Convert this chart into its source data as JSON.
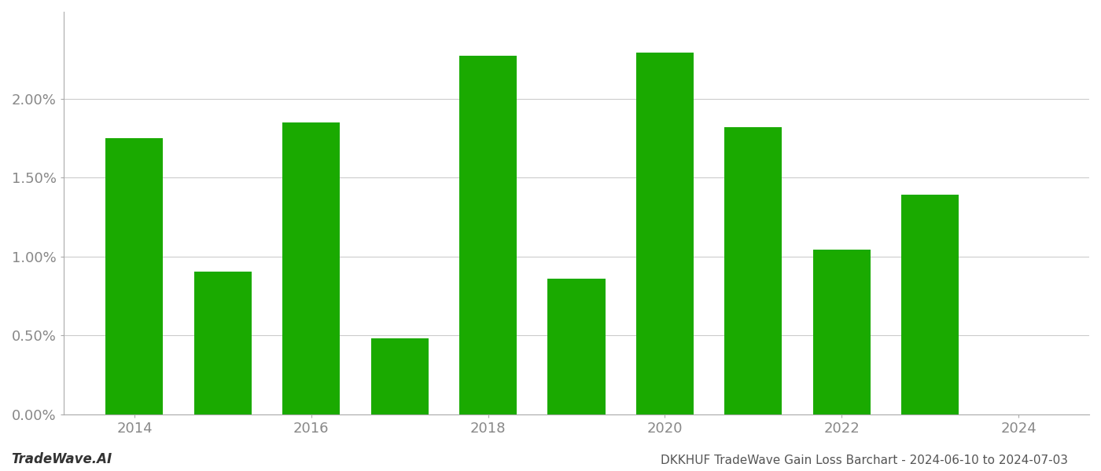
{
  "years": [
    2014,
    2015,
    2016,
    2017,
    2018,
    2019,
    2020,
    2021,
    2022,
    2023
  ],
  "values": [
    0.01748,
    0.00905,
    0.0185,
    0.0048,
    0.0227,
    0.0086,
    0.0229,
    0.0182,
    0.01045,
    0.0139
  ],
  "bar_color": "#1aaa00",
  "background_color": "#ffffff",
  "grid_color": "#cccccc",
  "ylabel_color": "#888888",
  "xlabel_color": "#888888",
  "title": "DKKHUF TradeWave Gain Loss Barchart - 2024-06-10 to 2024-07-03",
  "watermark": "TradeWave.AI",
  "ylim": [
    0,
    0.0255
  ],
  "yticks": [
    0.0,
    0.005,
    0.01,
    0.015,
    0.02
  ],
  "ytick_labels": [
    "0.00%",
    "0.50%",
    "1.00%",
    "1.50%",
    "2.00%"
  ],
  "title_fontsize": 11,
  "watermark_fontsize": 12,
  "tick_fontsize": 13,
  "bar_width": 0.65
}
